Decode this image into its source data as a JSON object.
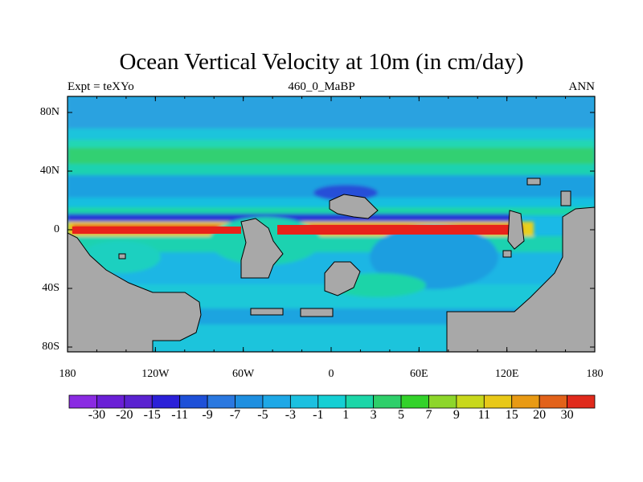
{
  "title": "Ocean Vertical Velocity at 10m (in cm/day)",
  "left_string": "Expt = teXYo",
  "center_string": "460_0_MaBP",
  "right_string": "ANN",
  "map_axes": {
    "lat_tick_labels": [
      "80N",
      "40N",
      "0",
      "40S",
      "80S"
    ],
    "lon_tick_labels": [
      "180",
      "120W",
      "60W",
      "0",
      "60E",
      "120E",
      "180"
    ],
    "lon_range": [
      -180,
      180
    ],
    "lat_range": [
      -90,
      90
    ]
  },
  "colorbar": {
    "labels": [
      "-30",
      "-20",
      "-15",
      "-11",
      "-9",
      "-7",
      "-5",
      "-3",
      "-1",
      "1",
      "3",
      "5",
      "7",
      "9",
      "11",
      "15",
      "20",
      "30"
    ],
    "colors": [
      "#8a2be2",
      "#6a1fd6",
      "#5a22d0",
      "#2b20d8",
      "#1e50d8",
      "#2a78e0",
      "#1e8fe0",
      "#1ea8e6",
      "#1cc0e0",
      "#15cfd4",
      "#1cd6a8",
      "#2ecf6a",
      "#33d22a",
      "#8dd62a",
      "#c8d81c",
      "#e8c818",
      "#e89a14",
      "#e2621a",
      "#e02a1c"
    ]
  },
  "palette": {
    "ocean_base": "#1ab9e6",
    "land": "#a8a8a8",
    "upwelling": "#e8221a",
    "downwelling": "#2b20d8"
  }
}
